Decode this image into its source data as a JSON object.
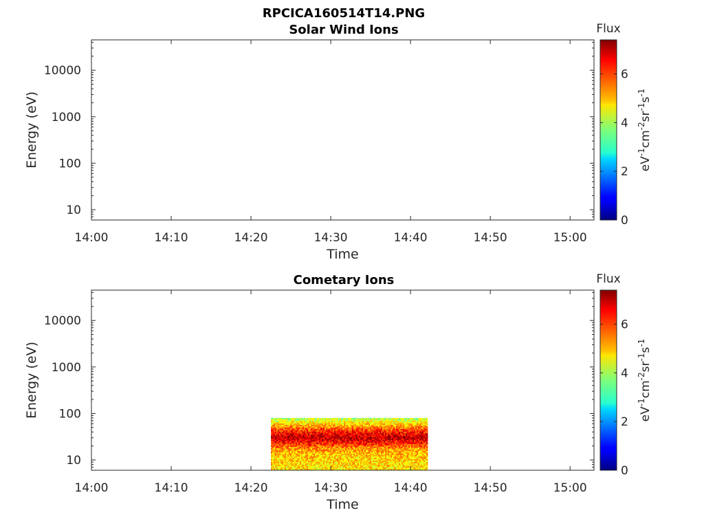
{
  "figure_title": "RPCICA160514T14.PNG",
  "chart_data": [
    {
      "type": "heatmap",
      "title": "Solar Wind Ions",
      "xlabel": "Time",
      "ylabel": "Energy (eV)",
      "x_ticks": [
        "14:00",
        "14:10",
        "14:20",
        "14:30",
        "14:40",
        "14:50",
        "15:00"
      ],
      "xlim_minutes": [
        0,
        63
      ],
      "y_scale": "log",
      "y_ticks": [
        "10",
        "100",
        "1000",
        "10000"
      ],
      "ylim": [
        6,
        45000
      ],
      "colorbar": {
        "title": "Flux",
        "label": "eV-1cm-2sr-1s-1",
        "ticks": [
          "0",
          "2",
          "4",
          "6"
        ],
        "range": [
          0,
          7.4
        ],
        "colormap": "jet"
      },
      "data_regions": []
    },
    {
      "type": "heatmap",
      "title": "Cometary Ions",
      "xlabel": "Time",
      "ylabel": "Energy (eV)",
      "x_ticks": [
        "14:00",
        "14:10",
        "14:20",
        "14:30",
        "14:40",
        "14:50",
        "15:00"
      ],
      "xlim_minutes": [
        0,
        63
      ],
      "y_scale": "log",
      "y_ticks": [
        "10",
        "100",
        "1000",
        "10000"
      ],
      "ylim": [
        6,
        45000
      ],
      "colorbar": {
        "title": "Flux",
        "label": "eV-1cm-2sr-1s-1",
        "ticks": [
          "0",
          "2",
          "4",
          "6"
        ],
        "range": [
          0,
          7.4
        ],
        "colormap": "jet"
      },
      "data_regions": [
        {
          "x_start": "14:22:30",
          "x_end": "14:42:00",
          "energy_range": [
            6,
            80
          ],
          "flux_by_energy": [
            {
              "energy": 6,
              "flux": 4.8
            },
            {
              "energy": 12,
              "flux": 5.0
            },
            {
              "energy": 18,
              "flux": 5.4
            },
            {
              "energy": 22,
              "flux": 6.2
            },
            {
              "energy": 30,
              "flux": 6.9
            },
            {
              "energy": 40,
              "flux": 6.3
            },
            {
              "energy": 55,
              "flux": 5.2
            },
            {
              "energy": 80,
              "flux": 4.0
            }
          ]
        }
      ]
    }
  ]
}
